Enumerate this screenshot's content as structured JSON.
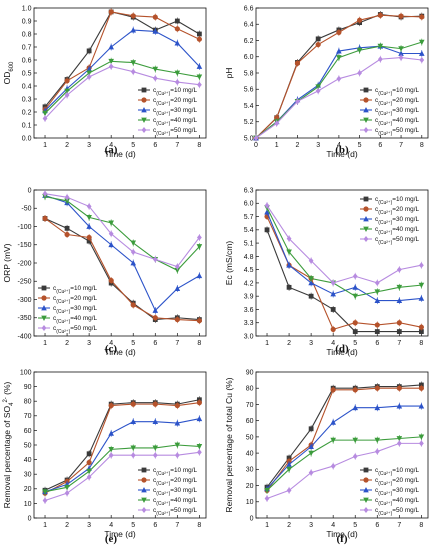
{
  "legend_labels": [
    "c(Cu²⁺)=10 mg/L",
    "c(Cu²⁺)=20 mg/L",
    "c(Cu²⁺)=30 mg/L",
    "c(Cu²⁺)=40 mg/L",
    "c(Cu²⁺)=50 mg/L"
  ],
  "series_styles": [
    {
      "color": "#3a3a3a",
      "marker": "square"
    },
    {
      "color": "#b5522b",
      "marker": "circle"
    },
    {
      "color": "#2c53c9",
      "marker": "triangle-up"
    },
    {
      "color": "#3c9c3c",
      "marker": "triangle-down"
    },
    {
      "color": "#b78be0",
      "marker": "diamond"
    }
  ],
  "chart_data": [
    {
      "panel": "(a)",
      "type": "line",
      "xlabel": "Time (d)",
      "ylabel": "OD600",
      "xlim": [
        0.5,
        8.3
      ],
      "ylim": [
        0.0,
        1.0
      ],
      "xticks": [
        1,
        2,
        3,
        4,
        5,
        6,
        7,
        8
      ],
      "yticks": [
        0.0,
        0.1,
        0.2,
        0.3,
        0.4,
        0.5,
        0.6,
        0.7,
        0.8,
        0.9,
        1.0
      ],
      "ytick_labels": [
        "0.0",
        "0.1",
        "0.2",
        "0.3",
        "0.4",
        "0.5",
        "0.6",
        "0.7",
        "0.8",
        "0.9",
        "1.0"
      ],
      "legend_position": "bottom-right",
      "x": [
        1,
        2,
        3,
        4,
        5,
        6,
        7,
        8
      ],
      "series": [
        {
          "name": "c(Cu²⁺)=10 mg/L",
          "values": [
            0.24,
            0.45,
            0.67,
            0.97,
            0.93,
            0.83,
            0.9,
            0.8
          ]
        },
        {
          "name": "c(Cu²⁺)=20 mg/L",
          "values": [
            0.22,
            0.44,
            0.54,
            0.97,
            0.94,
            0.93,
            0.84,
            0.76
          ]
        },
        {
          "name": "c(Cu²⁺)=30 mg/L",
          "values": [
            0.21,
            0.38,
            0.53,
            0.7,
            0.83,
            0.82,
            0.73,
            0.55
          ]
        },
        {
          "name": "c(Cu²⁺)=40 mg/L",
          "values": [
            0.19,
            0.36,
            0.5,
            0.59,
            0.58,
            0.53,
            0.5,
            0.47
          ]
        },
        {
          "name": "c(Cu²⁺)=50 mg/L",
          "values": [
            0.15,
            0.33,
            0.47,
            0.55,
            0.51,
            0.46,
            0.43,
            0.41
          ]
        }
      ]
    },
    {
      "panel": "(b)",
      "type": "line",
      "xlabel": "Time (d)",
      "ylabel": "pH",
      "xlim": [
        0,
        8.3
      ],
      "ylim": [
        5.0,
        6.6
      ],
      "xticks": [
        0,
        1,
        2,
        3,
        4,
        5,
        6,
        7,
        8
      ],
      "yticks": [
        5.0,
        5.2,
        5.4,
        5.6,
        5.8,
        6.0,
        6.2,
        6.4,
        6.6
      ],
      "ytick_labels": [
        "5.0",
        "5.2",
        "5.4",
        "5.6",
        "5.8",
        "6.0",
        "6.2",
        "6.4",
        "6.6"
      ],
      "legend_position": "bottom-right",
      "x": [
        0,
        1,
        2,
        3,
        4,
        5,
        6,
        7,
        8
      ],
      "series": [
        {
          "name": "c(Cu²⁺)=10 mg/L",
          "values": [
            5.0,
            5.25,
            5.93,
            6.22,
            6.33,
            6.42,
            6.52,
            6.49,
            6.5
          ]
        },
        {
          "name": "c(Cu²⁺)=20 mg/L",
          "values": [
            5.0,
            5.25,
            5.92,
            6.15,
            6.3,
            6.45,
            6.51,
            6.5,
            6.49
          ]
        },
        {
          "name": "c(Cu²⁺)=30 mg/L",
          "values": [
            5.0,
            5.2,
            5.47,
            5.65,
            6.07,
            6.11,
            6.13,
            6.04,
            6.04
          ]
        },
        {
          "name": "c(Cu²⁺)=40 mg/L",
          "values": [
            5.0,
            5.2,
            5.45,
            5.63,
            5.99,
            6.08,
            6.13,
            6.1,
            6.18
          ]
        },
        {
          "name": "c(Cu²⁺)=50 mg/L",
          "values": [
            5.0,
            5.18,
            5.45,
            5.58,
            5.73,
            5.8,
            5.97,
            5.99,
            5.96
          ]
        }
      ]
    },
    {
      "panel": "(c)",
      "type": "line",
      "xlabel": "Time (d)",
      "ylabel": "ORP (mV)",
      "xlim": [
        0.5,
        8.3
      ],
      "ylim": [
        -400,
        0
      ],
      "xticks": [
        1,
        2,
        3,
        4,
        5,
        6,
        7,
        8
      ],
      "yticks": [
        0,
        -50,
        -100,
        -150,
        -200,
        -250,
        -300,
        -350,
        -400
      ],
      "ytick_labels": [
        "0",
        "-50",
        "-100",
        "-150",
        "-200",
        "-250",
        "-300",
        "-350",
        "-400"
      ],
      "legend_position": "bottom-left",
      "x": [
        1,
        2,
        3,
        4,
        5,
        6,
        7,
        8
      ],
      "series": [
        {
          "name": "c(Cu²⁺)=10 mg/L",
          "values": [
            -78,
            -105,
            -140,
            -255,
            -310,
            -355,
            -350,
            -355
          ]
        },
        {
          "name": "c(Cu²⁺)=20 mg/L",
          "values": [
            -78,
            -122,
            -130,
            -248,
            -315,
            -350,
            -355,
            -358
          ]
        },
        {
          "name": "c(Cu²⁺)=30 mg/L",
          "values": [
            -15,
            -35,
            -100,
            -150,
            -200,
            -330,
            -270,
            -235
          ]
        },
        {
          "name": "c(Cu²⁺)=40 mg/L",
          "values": [
            -18,
            -30,
            -75,
            -90,
            -145,
            -190,
            -220,
            -155
          ]
        },
        {
          "name": "c(Cu²⁺)=50 mg/L",
          "values": [
            -10,
            -20,
            -45,
            -120,
            -170,
            -190,
            -210,
            -130
          ]
        }
      ]
    },
    {
      "panel": "(d)",
      "type": "line",
      "xlabel": "Time (d)",
      "ylabel": "Ec (mS/cm)",
      "xlim": [
        0.5,
        8.3
      ],
      "ylim": [
        3.0,
        6.3
      ],
      "xticks": [
        1,
        2,
        3,
        4,
        5,
        6,
        7,
        8
      ],
      "yticks": [
        3.0,
        3.3,
        3.6,
        3.9,
        4.2,
        4.5,
        4.8,
        5.1,
        5.4,
        5.7,
        6.0,
        6.3
      ],
      "ytick_labels": [
        "3.0",
        "3.3",
        "3.6",
        "3.9",
        "4.2",
        "4.5",
        "4.8",
        "5.1",
        "5.4",
        "5.7",
        "6.0",
        "6.3"
      ],
      "legend_position": "top-right",
      "x": [
        1,
        2,
        3,
        4,
        5,
        6,
        7,
        8
      ],
      "series": [
        {
          "name": "c(Cu²⁺)=10 mg/L",
          "values": [
            5.4,
            4.1,
            3.9,
            3.6,
            3.1,
            3.1,
            3.1,
            3.1
          ]
        },
        {
          "name": "c(Cu²⁺)=20 mg/L",
          "values": [
            5.7,
            4.6,
            4.3,
            3.15,
            3.3,
            3.25,
            3.3,
            3.2
          ]
        },
        {
          "name": "c(Cu²⁺)=30 mg/L",
          "values": [
            5.8,
            4.6,
            4.2,
            3.95,
            4.1,
            3.8,
            3.8,
            3.85
          ]
        },
        {
          "name": "c(Cu²⁺)=40 mg/L",
          "values": [
            5.9,
            4.9,
            4.3,
            4.2,
            3.9,
            4.0,
            4.1,
            4.15
          ]
        },
        {
          "name": "c(Cu²⁺)=50 mg/L",
          "values": [
            5.95,
            5.2,
            4.7,
            4.2,
            4.35,
            4.2,
            4.5,
            4.6
          ]
        }
      ]
    },
    {
      "panel": "(e)",
      "type": "line",
      "xlabel": "Time (d)",
      "ylabel": "Removal percentage of SO4²⁻ (%)",
      "xlim": [
        0.5,
        8.3
      ],
      "ylim": [
        0,
        100
      ],
      "xticks": [
        1,
        2,
        3,
        4,
        5,
        6,
        7,
        8
      ],
      "yticks": [
        0,
        10,
        20,
        30,
        40,
        50,
        60,
        70,
        80,
        90,
        100
      ],
      "ytick_labels": [
        "0",
        "10",
        "20",
        "30",
        "40",
        "50",
        "60",
        "70",
        "80",
        "90",
        "100"
      ],
      "legend_position": "bottom-right",
      "x": [
        1,
        2,
        3,
        4,
        5,
        6,
        7,
        8
      ],
      "series": [
        {
          "name": "c(Cu²⁺)=10 mg/L",
          "values": [
            19,
            26,
            44,
            78,
            79,
            79,
            78,
            81
          ]
        },
        {
          "name": "c(Cu²⁺)=20 mg/L",
          "values": [
            17,
            25,
            38,
            77,
            78,
            78,
            77,
            79
          ]
        },
        {
          "name": "c(Cu²⁺)=30 mg/L",
          "values": [
            18,
            23,
            34,
            58,
            66,
            66,
            65,
            68
          ]
        },
        {
          "name": "c(Cu²⁺)=40 mg/L",
          "values": [
            18,
            21,
            32,
            47,
            48,
            48,
            50,
            49
          ]
        },
        {
          "name": "c(Cu²⁺)=50 mg/L",
          "values": [
            12,
            17,
            28,
            43,
            43,
            43,
            43,
            45
          ]
        }
      ]
    },
    {
      "panel": "(f)",
      "type": "line",
      "xlabel": "Time (d)",
      "ylabel": "Removal percentage of total Cu (%)",
      "xlim": [
        0.5,
        8.3
      ],
      "ylim": [
        0,
        90
      ],
      "xticks": [
        1,
        2,
        3,
        4,
        5,
        6,
        7,
        8
      ],
      "yticks": [
        0,
        10,
        20,
        30,
        40,
        50,
        60,
        70,
        80,
        90
      ],
      "ytick_labels": [
        "0",
        "10",
        "20",
        "30",
        "40",
        "50",
        "60",
        "70",
        "80",
        "90"
      ],
      "legend_position": "bottom-right",
      "x": [
        1,
        2,
        3,
        4,
        5,
        6,
        7,
        8
      ],
      "series": [
        {
          "name": "c(Cu²⁺)=10 mg/L",
          "values": [
            19,
            37,
            55,
            80,
            80,
            81,
            81,
            82
          ]
        },
        {
          "name": "c(Cu²⁺)=20 mg/L",
          "values": [
            17,
            35,
            45,
            79,
            79,
            80,
            80,
            80
          ]
        },
        {
          "name": "c(Cu²⁺)=30 mg/L",
          "values": [
            18,
            33,
            44,
            59,
            68,
            68,
            69,
            69
          ]
        },
        {
          "name": "c(Cu²⁺)=40 mg/L",
          "values": [
            17,
            30,
            40,
            48,
            48,
            48,
            49,
            50
          ]
        },
        {
          "name": "c(Cu²⁺)=50 mg/L",
          "values": [
            12,
            17,
            28,
            32,
            38,
            41,
            46,
            46
          ]
        }
      ]
    }
  ]
}
